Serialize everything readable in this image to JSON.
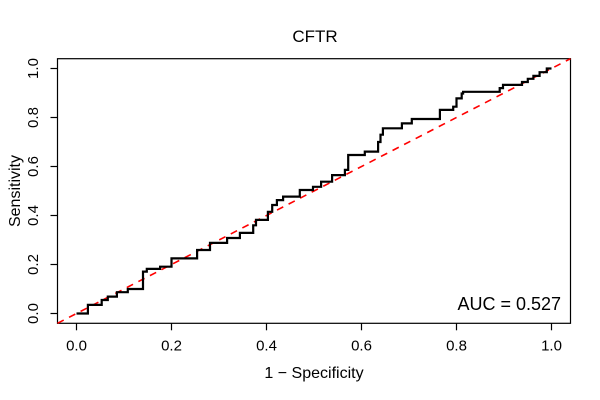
{
  "chart_data": {
    "type": "line",
    "subtype": "roc-curve",
    "title": "CFTR",
    "xlabel": "1 − Specificity",
    "ylabel": "Sensitivity",
    "annotation": "AUC = 0.527",
    "auc": 0.527,
    "xlim": [
      -0.04,
      1.04
    ],
    "ylim": [
      -0.04,
      1.04
    ],
    "x_ticks": [
      0.0,
      0.2,
      0.4,
      0.6,
      0.8,
      1.0
    ],
    "y_ticks": [
      0.0,
      0.2,
      0.4,
      0.6,
      0.8,
      1.0
    ],
    "grid": false,
    "legend": false,
    "colors": {
      "roc_line": "#000000",
      "chance_line": "#ff0000",
      "box": "#000000",
      "text": "#000000",
      "background": "#ffffff"
    },
    "series": [
      {
        "name": "ROC step curve",
        "style": "solid-step",
        "points": [
          [
            0.0,
            0.0
          ],
          [
            0.024,
            0.0
          ],
          [
            0.024,
            0.035
          ],
          [
            0.053,
            0.035
          ],
          [
            0.053,
            0.055
          ],
          [
            0.066,
            0.055
          ],
          [
            0.066,
            0.069
          ],
          [
            0.085,
            0.069
          ],
          [
            0.085,
            0.087
          ],
          [
            0.108,
            0.087
          ],
          [
            0.108,
            0.1
          ],
          [
            0.14,
            0.1
          ],
          [
            0.14,
            0.171
          ],
          [
            0.148,
            0.171
          ],
          [
            0.148,
            0.182
          ],
          [
            0.176,
            0.182
          ],
          [
            0.176,
            0.191
          ],
          [
            0.2,
            0.191
          ],
          [
            0.2,
            0.225
          ],
          [
            0.254,
            0.225
          ],
          [
            0.254,
            0.259
          ],
          [
            0.281,
            0.259
          ],
          [
            0.281,
            0.288
          ],
          [
            0.317,
            0.288
          ],
          [
            0.317,
            0.308
          ],
          [
            0.344,
            0.308
          ],
          [
            0.344,
            0.329
          ],
          [
            0.372,
            0.329
          ],
          [
            0.372,
            0.36
          ],
          [
            0.378,
            0.36
          ],
          [
            0.378,
            0.382
          ],
          [
            0.403,
            0.382
          ],
          [
            0.403,
            0.415
          ],
          [
            0.412,
            0.415
          ],
          [
            0.412,
            0.443
          ],
          [
            0.422,
            0.443
          ],
          [
            0.422,
            0.463
          ],
          [
            0.435,
            0.463
          ],
          [
            0.435,
            0.477
          ],
          [
            0.47,
            0.477
          ],
          [
            0.47,
            0.504
          ],
          [
            0.498,
            0.504
          ],
          [
            0.498,
            0.517
          ],
          [
            0.515,
            0.517
          ],
          [
            0.515,
            0.538
          ],
          [
            0.538,
            0.538
          ],
          [
            0.538,
            0.565
          ],
          [
            0.565,
            0.565
          ],
          [
            0.565,
            0.586
          ],
          [
            0.572,
            0.586
          ],
          [
            0.572,
            0.647
          ],
          [
            0.607,
            0.647
          ],
          [
            0.607,
            0.661
          ],
          [
            0.635,
            0.661
          ],
          [
            0.635,
            0.7
          ],
          [
            0.64,
            0.7
          ],
          [
            0.64,
            0.73
          ],
          [
            0.645,
            0.73
          ],
          [
            0.645,
            0.756
          ],
          [
            0.685,
            0.756
          ],
          [
            0.685,
            0.776
          ],
          [
            0.706,
            0.776
          ],
          [
            0.706,
            0.794
          ],
          [
            0.765,
            0.794
          ],
          [
            0.765,
            0.831
          ],
          [
            0.793,
            0.831
          ],
          [
            0.793,
            0.844
          ],
          [
            0.8,
            0.844
          ],
          [
            0.8,
            0.878
          ],
          [
            0.811,
            0.878
          ],
          [
            0.811,
            0.898
          ],
          [
            0.814,
            0.898
          ],
          [
            0.814,
            0.905
          ],
          [
            0.891,
            0.905
          ],
          [
            0.891,
            0.92
          ],
          [
            0.898,
            0.92
          ],
          [
            0.898,
            0.933
          ],
          [
            0.938,
            0.933
          ],
          [
            0.938,
            0.945
          ],
          [
            0.95,
            0.945
          ],
          [
            0.95,
            0.958
          ],
          [
            0.962,
            0.958
          ],
          [
            0.962,
            0.97
          ],
          [
            0.975,
            0.97
          ],
          [
            0.975,
            0.985
          ],
          [
            0.99,
            0.985
          ],
          [
            0.99,
            1.0
          ],
          [
            1.0,
            1.0
          ]
        ]
      },
      {
        "name": "chance diagonal",
        "style": "dashed",
        "points": [
          [
            0.0,
            0.0
          ],
          [
            1.0,
            1.0
          ]
        ]
      }
    ]
  }
}
